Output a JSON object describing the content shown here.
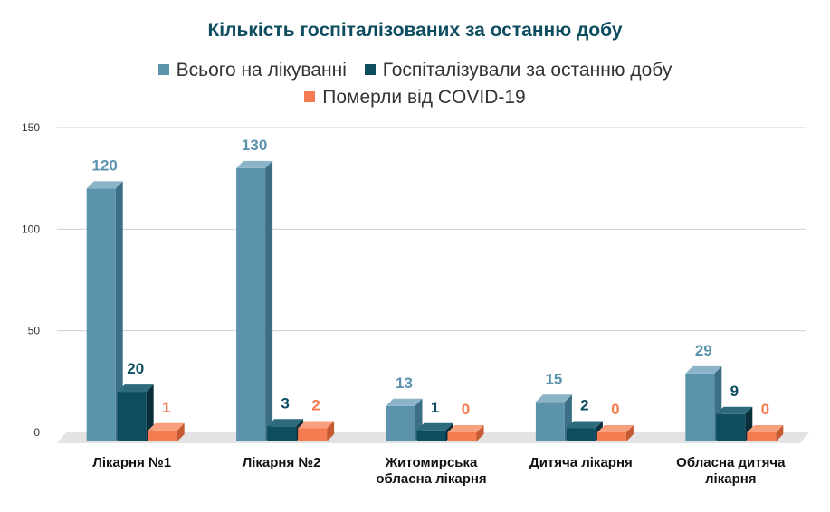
{
  "chart_data": {
    "type": "bar",
    "title": "Кількість госпіталізованих за останню добу",
    "categories": [
      [
        "Лікарня №1"
      ],
      [
        "Лікарня №2"
      ],
      [
        "Житомирська",
        "обласна лікарня"
      ],
      [
        "Дитяча лікарня"
      ],
      [
        "Обласна дитяча",
        "лікарня"
      ]
    ],
    "series": [
      {
        "name": "Всього на лікуванні",
        "values": [
          120,
          130,
          13,
          15,
          29
        ],
        "color": "#5b93ad",
        "side": "#3c6e85",
        "top": "#8bb4c8"
      },
      {
        "name": "Госпіталізували за останню добу",
        "values": [
          20,
          3,
          1,
          2,
          9
        ],
        "color": "#0d4d5f",
        "side": "#082f3a",
        "top": "#2d6a7c"
      },
      {
        "name": "Померли від COVID-19",
        "values": [
          1,
          2,
          0,
          0,
          0
        ],
        "color": "#f47c50",
        "side": "#c65a33",
        "top": "#f8a07e"
      }
    ],
    "ylim": [
      0,
      150
    ],
    "yticks": [
      0,
      50,
      100,
      150
    ],
    "grid": true,
    "legend_position": "top"
  }
}
